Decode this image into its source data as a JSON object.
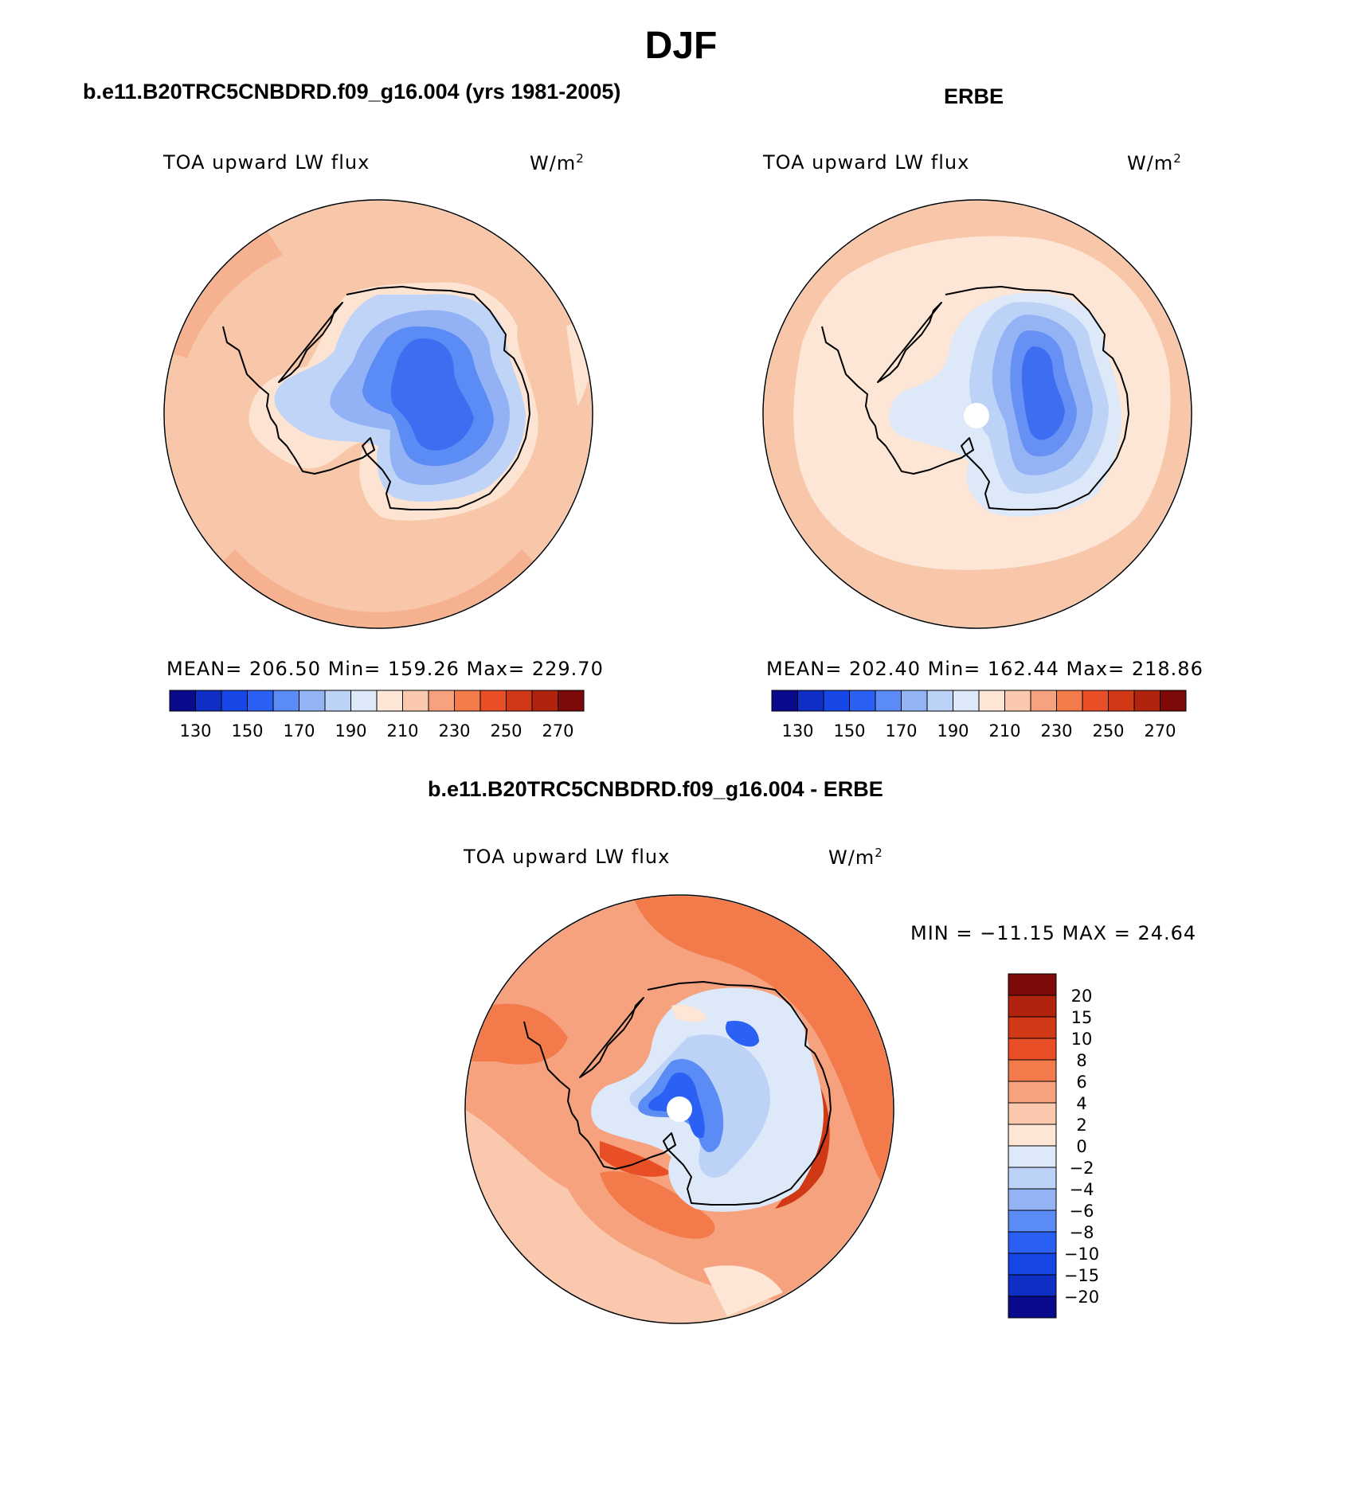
{
  "page_title": "DJF",
  "panels": [
    {
      "header": "b.e11.B20TRC5CNBDRD.f09_g16.004 (yrs 1981-2005)",
      "left_label": "TOA upward LW flux",
      "unit_base": "W/m",
      "unit_exp": "2",
      "stats": "MEAN= 206.50   Min= 159.26   Max= 229.70",
      "colorbar_labels": [
        "130",
        "150",
        "170",
        "190",
        "210",
        "230",
        "250",
        "270"
      ]
    },
    {
      "header": "ERBE",
      "left_label": "TOA upward LW flux",
      "unit_base": "W/m",
      "unit_exp": "2",
      "stats": "MEAN= 202.40   Min= 162.44   Max= 218.86",
      "colorbar_labels": [
        "130",
        "150",
        "170",
        "190",
        "210",
        "230",
        "250",
        "270"
      ]
    }
  ],
  "diff_panel": {
    "header": "b.e11.B20TRC5CNBDRD.f09_g16.004 - ERBE",
    "left_label": "TOA upward LW flux",
    "unit_base": "W/m",
    "unit_exp": "2",
    "minmax": "MIN = −11.15 MAX =  24.64",
    "colorbar_labels": [
      "20",
      "15",
      "10",
      "8",
      "6",
      "4",
      "2",
      "0",
      "−2",
      "−4",
      "−6",
      "−8",
      "−10",
      "−15",
      "−20"
    ]
  },
  "colors": {
    "abs_scale": [
      "#0a0a8c",
      "#0f2fc4",
      "#1746e6",
      "#2a61f4",
      "#5b8bf4",
      "#93b3f5",
      "#bcd2f7",
      "#dde8f8",
      "#fde6d6",
      "#f9c8ad",
      "#f6a27e",
      "#f37a4b",
      "#e84f26",
      "#d03816",
      "#b0230e",
      "#7d0a08"
    ],
    "diff_scale": [
      "#0a0a8c",
      "#0f2fc4",
      "#1746e6",
      "#2a61f4",
      "#5b8bf4",
      "#93b3f5",
      "#bcd2f7",
      "#dde8f8",
      "#fde6d6",
      "#f9c8ad",
      "#f6a27e",
      "#f37a4b",
      "#e84f26",
      "#d03816",
      "#b0230e",
      "#7d0a08"
    ]
  }
}
